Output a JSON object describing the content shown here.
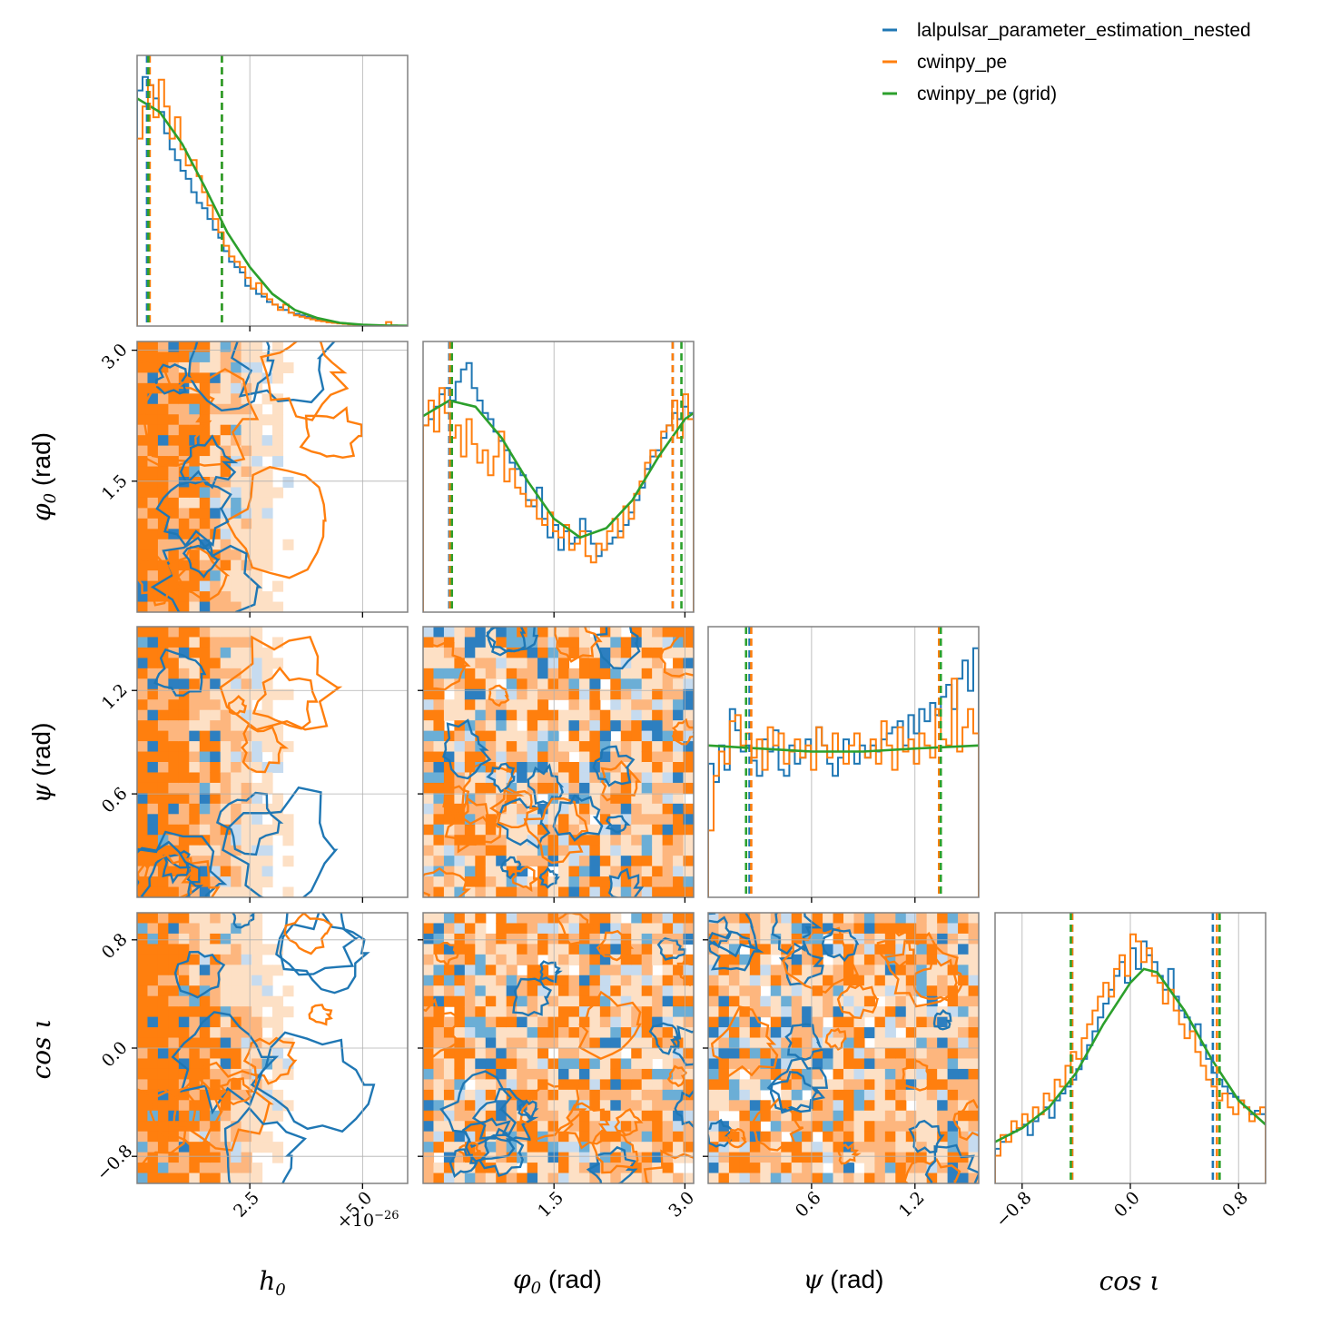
{
  "chart_data": {
    "type": "corner",
    "parameters": [
      {
        "key": "h0",
        "label_sym": "h",
        "label_sub": "0",
        "label_unit": "",
        "range": [
          0.0,
          6.0
        ],
        "ticks": [
          2.5,
          5.0
        ],
        "tick_labels": [
          "2.5",
          "5.0"
        ],
        "offset_text": "×10",
        "offset_exp": "−26"
      },
      {
        "key": "phi0",
        "label_sym": "φ",
        "label_sub": "0",
        "label_unit": " (rad)",
        "range": [
          0.0,
          3.1
        ],
        "ticks": [
          1.5,
          3.0
        ],
        "tick_labels": [
          "1.5",
          "3.0"
        ]
      },
      {
        "key": "psi",
        "label_sym": "ψ",
        "label_sub": "",
        "label_unit": " (rad)",
        "range": [
          0.0,
          1.57
        ],
        "ticks": [
          0.6,
          1.2
        ],
        "tick_labels": [
          "0.6",
          "1.2"
        ]
      },
      {
        "key": "cosi",
        "label_sym": "cos ι",
        "label_sub": "",
        "label_unit": "",
        "range": [
          -1.0,
          1.0
        ],
        "ticks": [
          -0.8,
          0.0,
          0.8
        ],
        "tick_labels": [
          "−0.8",
          "0.0",
          "0.8"
        ]
      }
    ],
    "series": [
      {
        "name": "lalpulsar_parameter_estimation_nested",
        "color": "#1f77b4"
      },
      {
        "name": "cwinpy_pe",
        "color": "#ff7f0e"
      },
      {
        "name": "cwinpy_pe (grid)",
        "color": "#2ca02c"
      }
    ],
    "histograms": {
      "h0": {
        "blue": [
          0.88,
          0.93,
          0.9,
          0.85,
          0.8,
          0.72,
          0.66,
          0.62,
          0.58,
          0.55,
          0.5,
          0.46,
          0.44,
          0.4,
          0.36,
          0.33,
          0.28,
          0.24,
          0.22,
          0.2,
          0.15,
          0.14,
          0.12,
          0.11,
          0.09,
          0.08,
          0.07,
          0.06,
          0.05,
          0.045,
          0.04,
          0.035,
          0.03,
          0.025,
          0.02,
          0.018,
          0.015,
          0.012,
          0.01,
          0.008,
          0.006,
          0.005,
          0.004,
          0.003,
          0.003,
          0.002,
          0.002,
          0.002,
          0.001,
          0.001
        ],
        "orange": [
          0.7,
          0.82,
          0.9,
          0.78,
          0.92,
          0.82,
          0.7,
          0.78,
          0.66,
          0.6,
          0.62,
          0.56,
          0.5,
          0.45,
          0.4,
          0.35,
          0.3,
          0.26,
          0.24,
          0.22,
          0.18,
          0.14,
          0.16,
          0.12,
          0.1,
          0.08,
          0.06,
          0.08,
          0.05,
          0.04,
          0.035,
          0.03,
          0.025,
          0.02,
          0.018,
          0.014,
          0.012,
          0.01,
          0.008,
          0.006,
          0.005,
          0.004,
          0.003,
          0.003,
          0.002,
          0.002,
          0.015,
          0.002,
          0.001,
          0.001
        ],
        "grid": {
          "x": [
            0,
            0.5,
            1,
            1.5,
            2,
            2.5,
            3,
            3.5,
            4,
            4.5,
            5,
            5.5,
            6
          ],
          "y": [
            0.85,
            0.8,
            0.68,
            0.52,
            0.35,
            0.22,
            0.12,
            0.06,
            0.03,
            0.012,
            0.005,
            0.002,
            0.001
          ]
        },
        "quantiles": {
          "blue": [
            0.22,
            1.88
          ],
          "orange": [
            0.28,
            1.88
          ],
          "grid": [
            0.25,
            1.88
          ]
        }
      },
      "phi0": {
        "blue": [
          0.6,
          0.62,
          0.66,
          0.7,
          0.72,
          0.68,
          0.74,
          0.78,
          0.8,
          0.72,
          0.68,
          0.64,
          0.62,
          0.58,
          0.55,
          0.52,
          0.48,
          0.46,
          0.44,
          0.36,
          0.34,
          0.4,
          0.3,
          0.24,
          0.28,
          0.2,
          0.26,
          0.22,
          0.24,
          0.3,
          0.26,
          0.22,
          0.18,
          0.2,
          0.22,
          0.24,
          0.26,
          0.28,
          0.32,
          0.36,
          0.4,
          0.46,
          0.5,
          0.52,
          0.56,
          0.6,
          0.64,
          0.62,
          0.66,
          0.64
        ],
        "orange": [
          0.6,
          0.68,
          0.58,
          0.72,
          0.64,
          0.56,
          0.6,
          0.5,
          0.62,
          0.54,
          0.48,
          0.52,
          0.44,
          0.5,
          0.58,
          0.42,
          0.46,
          0.4,
          0.38,
          0.34,
          0.36,
          0.3,
          0.28,
          0.32,
          0.26,
          0.24,
          0.28,
          0.2,
          0.22,
          0.26,
          0.18,
          0.16,
          0.22,
          0.2,
          0.26,
          0.3,
          0.24,
          0.34,
          0.3,
          0.38,
          0.42,
          0.48,
          0.52,
          0.5,
          0.58,
          0.6,
          0.68,
          0.56,
          0.7,
          0.62
        ],
        "grid": {
          "x": [
            0,
            0.3,
            0.6,
            0.9,
            1.2,
            1.5,
            1.8,
            2.1,
            2.4,
            2.7,
            3.0,
            3.1
          ],
          "y": [
            0.63,
            0.68,
            0.66,
            0.56,
            0.42,
            0.3,
            0.24,
            0.27,
            0.36,
            0.5,
            0.62,
            0.64
          ]
        },
        "quantiles": {
          "blue": [
            0.3,
            2.86
          ],
          "orange": [
            0.31,
            2.86
          ],
          "grid": [
            0.33,
            2.96
          ]
        }
      },
      "psi": {
        "blue": [
          0.44,
          0.38,
          0.5,
          0.42,
          0.62,
          0.55,
          0.48,
          0.5,
          0.45,
          0.4,
          0.52,
          0.48,
          0.55,
          0.42,
          0.4,
          0.5,
          0.44,
          0.46,
          0.52,
          0.48,
          0.56,
          0.5,
          0.44,
          0.4,
          0.46,
          0.52,
          0.48,
          0.44,
          0.5,
          0.46,
          0.5,
          0.48,
          0.52,
          0.54,
          0.56,
          0.58,
          0.5,
          0.6,
          0.54,
          0.62,
          0.58,
          0.64,
          0.6,
          0.66,
          0.7,
          0.62,
          0.72,
          0.78,
          0.68,
          0.82
        ],
        "orange": [
          0.22,
          0.4,
          0.48,
          0.44,
          0.58,
          0.6,
          0.5,
          0.54,
          0.46,
          0.52,
          0.42,
          0.56,
          0.5,
          0.54,
          0.44,
          0.48,
          0.52,
          0.46,
          0.5,
          0.42,
          0.56,
          0.5,
          0.46,
          0.54,
          0.48,
          0.44,
          0.5,
          0.54,
          0.48,
          0.46,
          0.52,
          0.44,
          0.58,
          0.5,
          0.42,
          0.56,
          0.48,
          0.52,
          0.44,
          0.54,
          0.5,
          0.46,
          0.62,
          0.52,
          0.5,
          0.72,
          0.48,
          0.56,
          0.62,
          0.54
        ],
        "grid": {
          "x": [
            0,
            0.3,
            0.6,
            0.9,
            1.2,
            1.57
          ],
          "y": [
            0.5,
            0.49,
            0.48,
            0.48,
            0.49,
            0.5
          ]
        },
        "quantiles": {
          "blue": [
            0.24,
            1.34
          ],
          "orange": [
            0.25,
            1.34
          ],
          "grid": [
            0.22,
            1.35
          ]
        }
      },
      "cosi": {
        "blue": [
          0.1,
          0.12,
          0.14,
          0.15,
          0.16,
          0.17,
          0.14,
          0.18,
          0.2,
          0.22,
          0.19,
          0.24,
          0.26,
          0.28,
          0.3,
          0.33,
          0.36,
          0.4,
          0.44,
          0.48,
          0.52,
          0.56,
          0.6,
          0.64,
          0.58,
          0.68,
          0.62,
          0.7,
          0.66,
          0.64,
          0.6,
          0.56,
          0.62,
          0.54,
          0.5,
          0.48,
          0.44,
          0.46,
          0.4,
          0.36,
          0.32,
          0.3,
          0.28,
          0.26,
          0.25,
          0.24,
          0.22,
          0.2,
          0.21,
          0.2
        ],
        "orange": [
          0.08,
          0.14,
          0.12,
          0.18,
          0.16,
          0.2,
          0.18,
          0.22,
          0.2,
          0.26,
          0.24,
          0.3,
          0.28,
          0.34,
          0.38,
          0.36,
          0.42,
          0.46,
          0.5,
          0.54,
          0.58,
          0.54,
          0.62,
          0.66,
          0.6,
          0.72,
          0.7,
          0.64,
          0.68,
          0.6,
          0.58,
          0.52,
          0.56,
          0.5,
          0.46,
          0.42,
          0.44,
          0.38,
          0.34,
          0.3,
          0.28,
          0.24,
          0.26,
          0.22,
          0.2,
          0.24,
          0.22,
          0.18,
          0.2,
          0.22
        ],
        "grid": {
          "x": [
            -1,
            -0.8,
            -0.6,
            -0.4,
            -0.2,
            0,
            0.1,
            0.2,
            0.4,
            0.6,
            0.8,
            1
          ],
          "y": [
            0.12,
            0.16,
            0.22,
            0.32,
            0.46,
            0.58,
            0.62,
            0.61,
            0.5,
            0.36,
            0.24,
            0.17
          ]
        },
        "quantiles": {
          "blue": [
            -0.43,
            0.61
          ],
          "orange": [
            -0.43,
            0.64
          ],
          "grid": [
            -0.44,
            0.66
          ]
        }
      }
    },
    "x_labels": [
      "h0",
      "φ0 (rad)",
      "ψ (rad)",
      "cos ι"
    ],
    "y_labels": [
      "φ0 (rad)",
      "ψ (rad)",
      "cos ι"
    ],
    "grid": true,
    "legend_position": "top-right"
  }
}
